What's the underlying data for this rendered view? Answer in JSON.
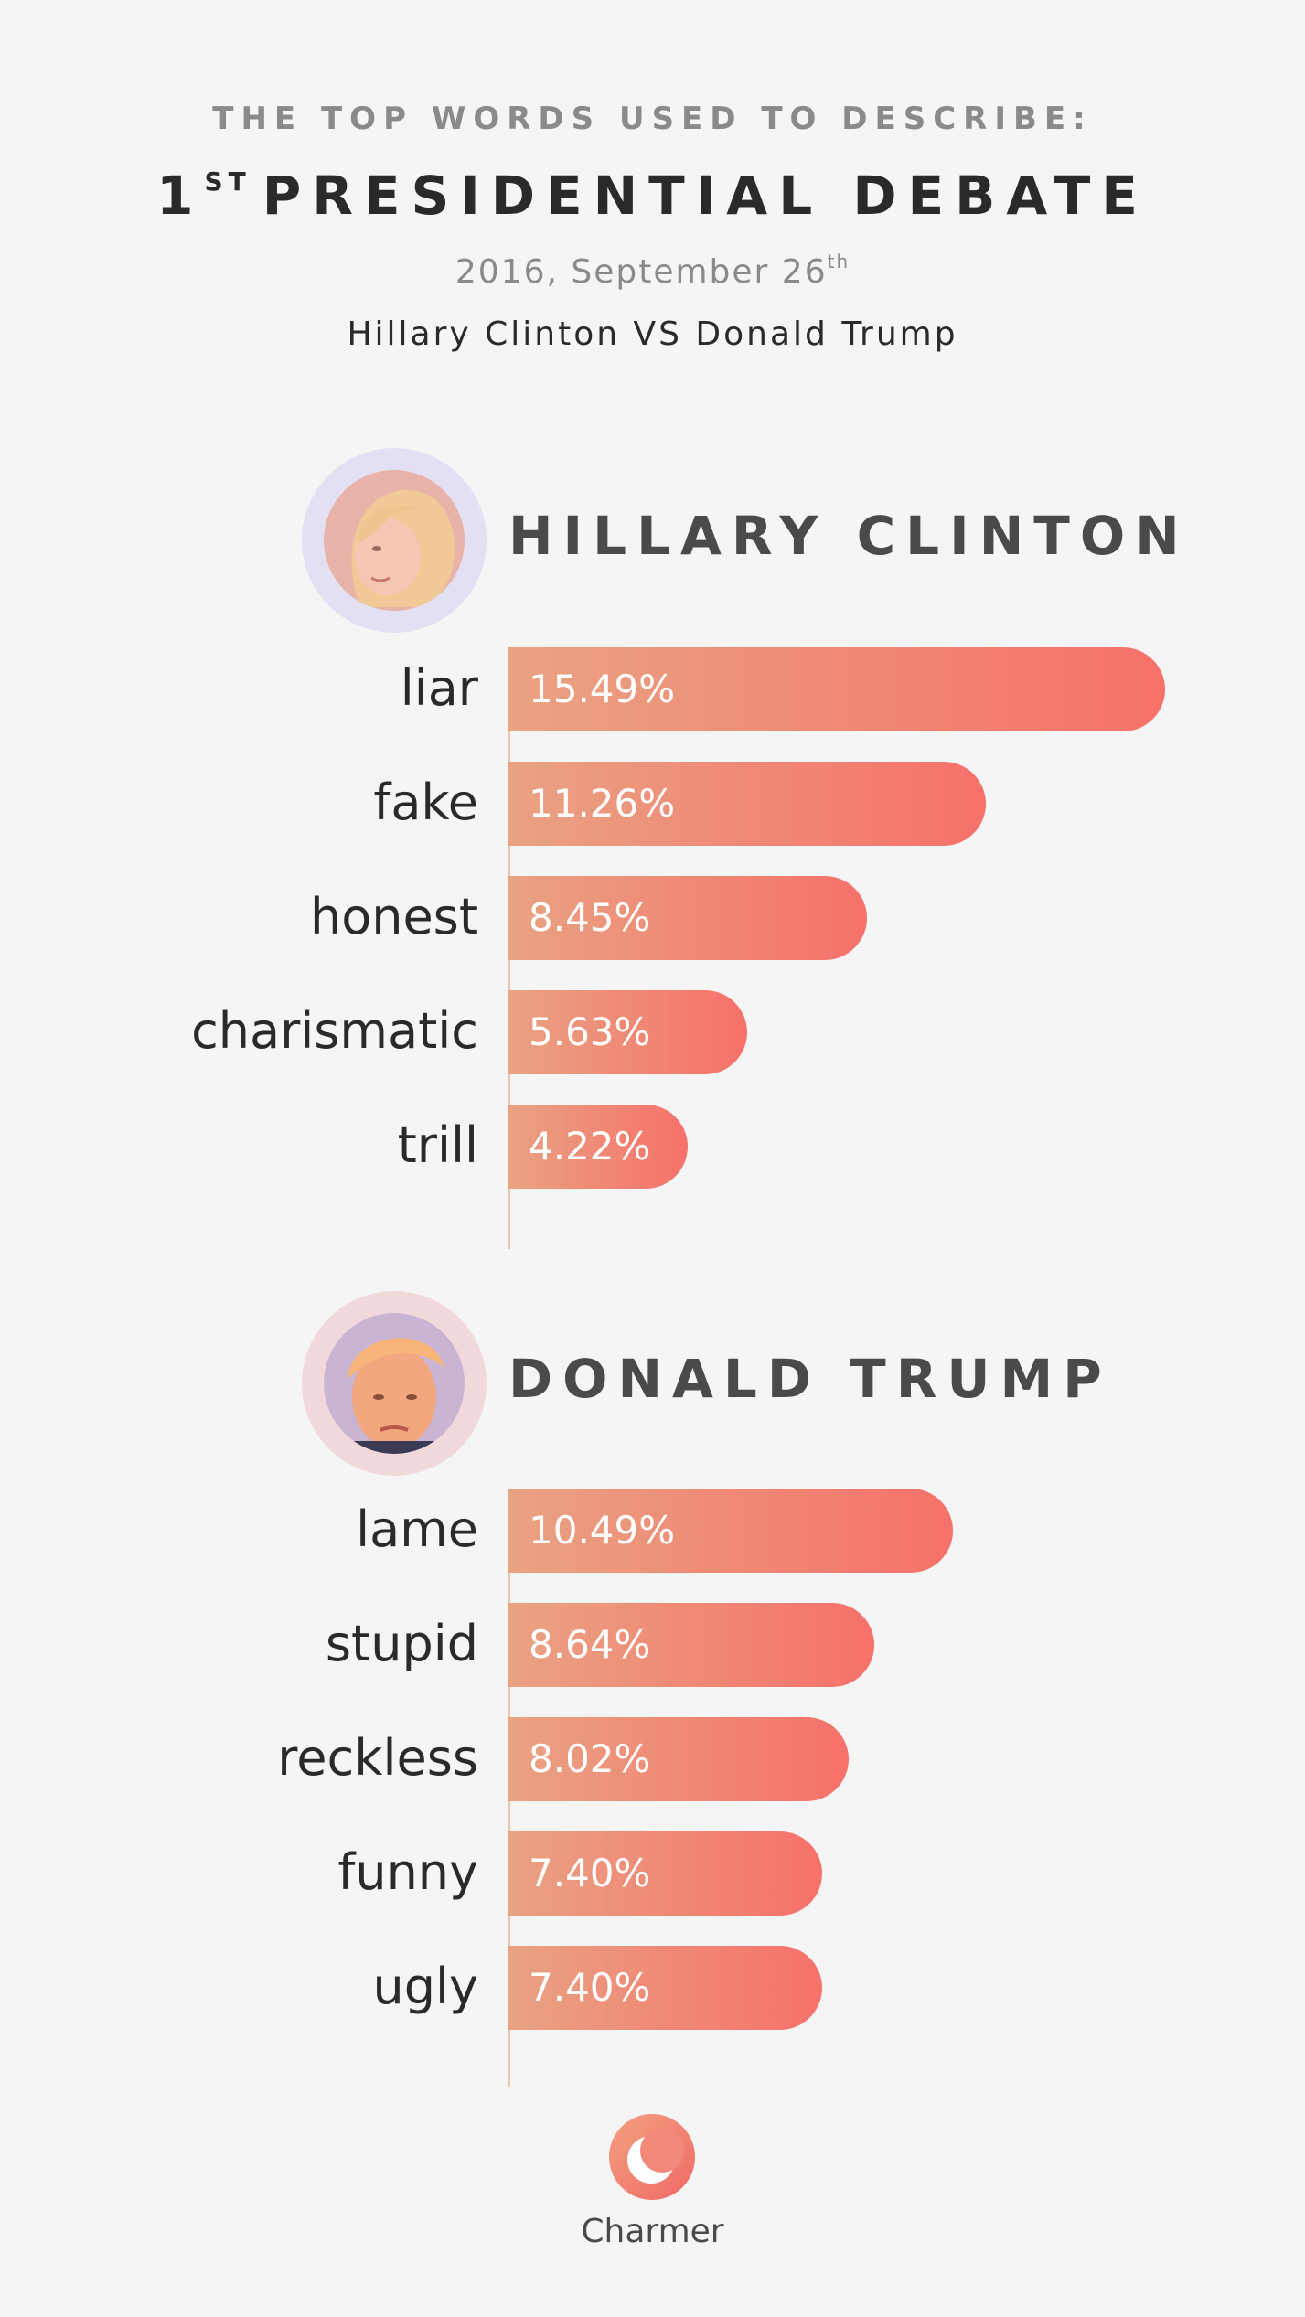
{
  "header": {
    "kicker": "THE TOP WORDS USED TO DESCRIBE:",
    "title_prefix": "1",
    "title_sup": "ST",
    "title_rest": "PRESIDENTIAL DEBATE",
    "date_main": "2016, September 26",
    "date_sup": "th",
    "matchup": "Hillary Clinton VS Donald Trump"
  },
  "colors": {
    "bar_start": "#e9a282",
    "bar_end": "#f6716a",
    "clinton_ring": "#e3e0f3",
    "trump_ring": "#f1d9db"
  },
  "chart_data": [
    {
      "type": "bar",
      "orientation": "horizontal",
      "title": "HILLARY CLINTON",
      "avatar_icon": "hillary-clinton-portrait",
      "categories": [
        "liar",
        "fake",
        "honest",
        "charismatic",
        "trill"
      ],
      "values": [
        15.49,
        11.26,
        8.45,
        5.63,
        4.22
      ],
      "labels": [
        "15.49%",
        "11.26%",
        "8.45%",
        "5.63%",
        "4.22%"
      ],
      "unit": "%"
    },
    {
      "type": "bar",
      "orientation": "horizontal",
      "title": "DONALD TRUMP",
      "avatar_icon": "donald-trump-portrait",
      "categories": [
        "lame",
        "stupid",
        "reckless",
        "funny",
        "ugly"
      ],
      "values": [
        10.49,
        8.64,
        8.02,
        7.4,
        7.4
      ],
      "labels": [
        "10.49%",
        "8.64%",
        "8.02%",
        "7.40%",
        "7.40%"
      ],
      "unit": "%"
    }
  ],
  "footer": {
    "brand": "Charmer",
    "logo_icon": "crescent-moon-icon"
  }
}
